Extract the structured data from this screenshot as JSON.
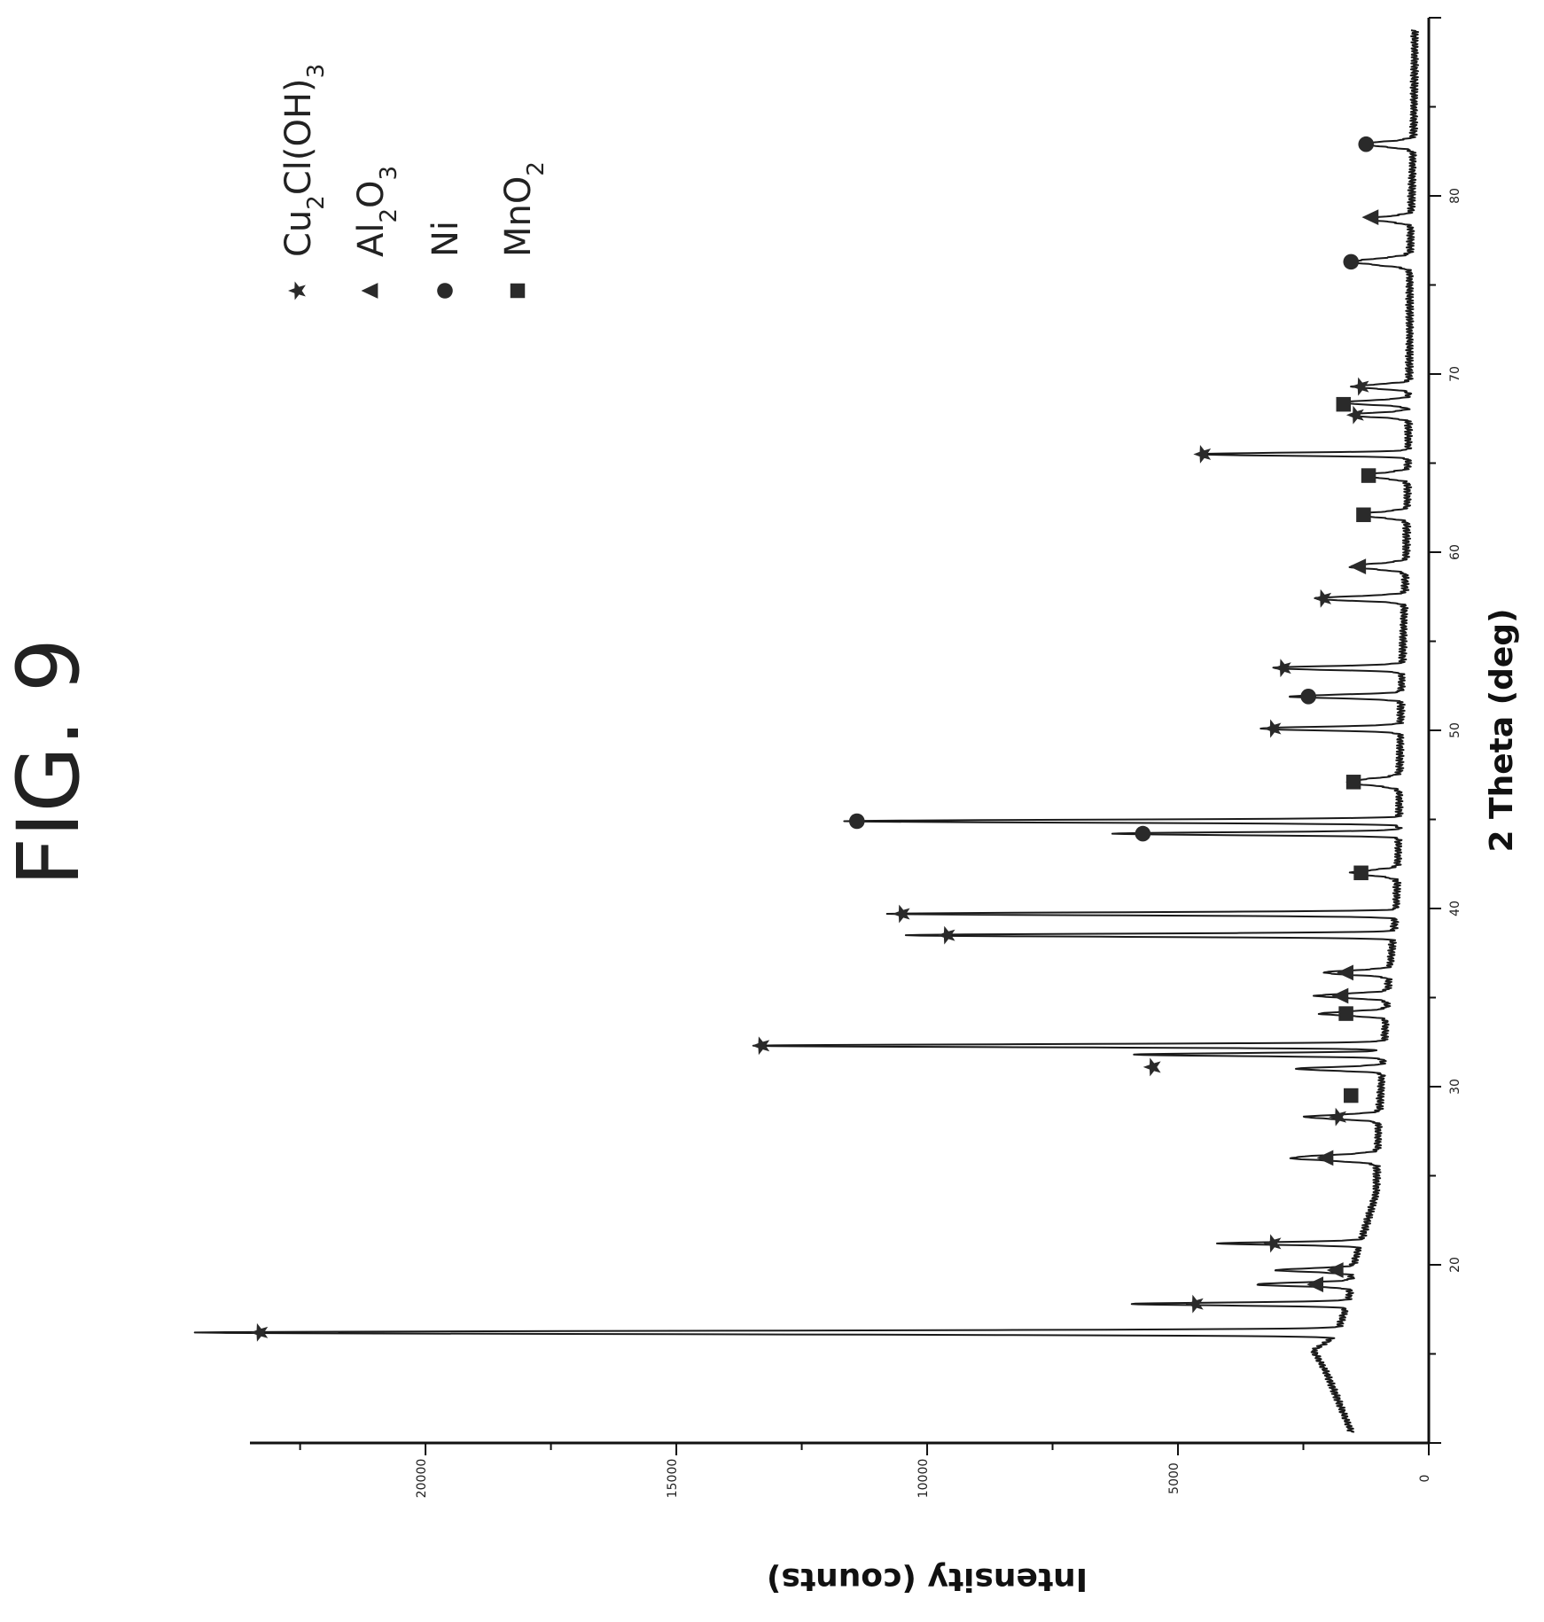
{
  "figure": {
    "label": "FIG. 9"
  },
  "chart_data": {
    "type": "line",
    "xlabel": "2 Theta (deg)",
    "ylabel": "Intensity (counts)",
    "xlim": [
      10,
      90
    ],
    "ylim": [
      0,
      23500
    ],
    "xticks": [
      20,
      30,
      40,
      50,
      60,
      70,
      80
    ],
    "yticks": [
      0,
      5000,
      10000,
      15000,
      20000
    ],
    "grid": false,
    "legend_position": "top-right",
    "legend": [
      {
        "marker": "star",
        "label": "Cu2Cl(OH)3",
        "segments": [
          [
            "Cu",
            ""
          ],
          [
            "2",
            "sub"
          ],
          [
            "Cl(OH)",
            ""
          ],
          [
            "3",
            "sub"
          ]
        ]
      },
      {
        "marker": "triangle",
        "label": "Al2O3",
        "segments": [
          [
            "Al",
            ""
          ],
          [
            "2",
            "sub"
          ],
          [
            "O",
            ""
          ],
          [
            "3",
            "sub"
          ]
        ]
      },
      {
        "marker": "circle",
        "label": "Ni",
        "segments": [
          [
            "Ni",
            ""
          ]
        ]
      },
      {
        "marker": "square",
        "label": "MnO2",
        "segments": [
          [
            "MnO",
            ""
          ],
          [
            "2",
            "sub"
          ]
        ]
      }
    ],
    "baseline": [
      [
        10,
        1450
      ],
      [
        12,
        1750
      ],
      [
        14,
        2050
      ],
      [
        15.2,
        2300
      ],
      [
        16,
        1850
      ],
      [
        18,
        1600
      ],
      [
        20,
        1500
      ],
      [
        24,
        1050
      ],
      [
        28,
        1000
      ],
      [
        32,
        900
      ],
      [
        36,
        800
      ],
      [
        40,
        650
      ],
      [
        44,
        600
      ],
      [
        48,
        580
      ],
      [
        52,
        550
      ],
      [
        56,
        500
      ],
      [
        60,
        450
      ],
      [
        64,
        420
      ],
      [
        68,
        400
      ],
      [
        72,
        380
      ],
      [
        76,
        380
      ],
      [
        80,
        340
      ],
      [
        84,
        300
      ],
      [
        88,
        280
      ],
      [
        90,
        280
      ]
    ],
    "peaks": [
      {
        "x": 16.2,
        "y": 22800,
        "w": 0.09
      },
      {
        "x": 17.8,
        "y": 4300,
        "w": 0.08
      },
      {
        "x": 18.9,
        "y": 1900,
        "w": 0.1
      },
      {
        "x": 19.7,
        "y": 1500,
        "w": 0.1
      },
      {
        "x": 21.2,
        "y": 2800,
        "w": 0.08
      },
      {
        "x": 26.0,
        "y": 1700,
        "w": 0.15
      },
      {
        "x": 28.3,
        "y": 1450,
        "w": 0.12
      },
      {
        "x": 31.0,
        "y": 1700,
        "w": 0.1
      },
      {
        "x": 31.8,
        "y": 5000,
        "w": 0.08
      },
      {
        "x": 32.3,
        "y": 12600,
        "w": 0.08
      },
      {
        "x": 34.1,
        "y": 1300,
        "w": 0.12
      },
      {
        "x": 35.1,
        "y": 1400,
        "w": 0.12
      },
      {
        "x": 36.4,
        "y": 1300,
        "w": 0.12
      },
      {
        "x": 38.5,
        "y": 9700,
        "w": 0.08
      },
      {
        "x": 39.7,
        "y": 10100,
        "w": 0.08
      },
      {
        "x": 42.0,
        "y": 900,
        "w": 0.15
      },
      {
        "x": 44.2,
        "y": 5700,
        "w": 0.08
      },
      {
        "x": 44.9,
        "y": 11000,
        "w": 0.08
      },
      {
        "x": 47.1,
        "y": 1000,
        "w": 0.18
      },
      {
        "x": 50.1,
        "y": 2800,
        "w": 0.1
      },
      {
        "x": 51.9,
        "y": 2200,
        "w": 0.1
      },
      {
        "x": 53.5,
        "y": 2600,
        "w": 0.1
      },
      {
        "x": 57.4,
        "y": 1800,
        "w": 0.12
      },
      {
        "x": 59.2,
        "y": 1100,
        "w": 0.15
      },
      {
        "x": 62.1,
        "y": 1000,
        "w": 0.15
      },
      {
        "x": 64.3,
        "y": 900,
        "w": 0.15
      },
      {
        "x": 65.5,
        "y": 4200,
        "w": 0.08
      },
      {
        "x": 67.7,
        "y": 1200,
        "w": 0.12
      },
      {
        "x": 68.4,
        "y": 1300,
        "w": 0.12
      },
      {
        "x": 69.3,
        "y": 1100,
        "w": 0.12
      },
      {
        "x": 76.3,
        "y": 1100,
        "w": 0.18
      },
      {
        "x": 78.7,
        "y": 800,
        "w": 0.15
      },
      {
        "x": 82.9,
        "y": 950,
        "w": 0.15
      }
    ],
    "markers": [
      {
        "type": "star",
        "x": 16.2,
        "y": 23300
      },
      {
        "type": "star",
        "x": 17.8,
        "y": 4650
      },
      {
        "type": "triangle",
        "x": 18.9,
        "y": 2250
      },
      {
        "type": "triangle",
        "x": 19.7,
        "y": 1850
      },
      {
        "type": "star",
        "x": 21.2,
        "y": 3100
      },
      {
        "type": "triangle",
        "x": 26.0,
        "y": 2050
      },
      {
        "type": "star",
        "x": 28.3,
        "y": 1800
      },
      {
        "type": "square",
        "x": 29.5,
        "y": 1550
      },
      {
        "type": "star",
        "x": 31.1,
        "y": 5500
      },
      {
        "type": "star",
        "x": 32.3,
        "y": 13300
      },
      {
        "type": "square",
        "x": 34.1,
        "y": 1650
      },
      {
        "type": "triangle",
        "x": 35.1,
        "y": 1750
      },
      {
        "type": "triangle",
        "x": 36.4,
        "y": 1650
      },
      {
        "type": "star",
        "x": 38.5,
        "y": 9600
      },
      {
        "type": "star",
        "x": 39.7,
        "y": 10500
      },
      {
        "type": "square",
        "x": 42.0,
        "y": 1350
      },
      {
        "type": "circle",
        "x": 44.2,
        "y": 5700
      },
      {
        "type": "circle",
        "x": 44.9,
        "y": 11400
      },
      {
        "type": "square",
        "x": 47.1,
        "y": 1500
      },
      {
        "type": "star",
        "x": 50.1,
        "y": 3100
      },
      {
        "type": "circle",
        "x": 51.9,
        "y": 2400
      },
      {
        "type": "star",
        "x": 53.5,
        "y": 2900
      },
      {
        "type": "star",
        "x": 57.4,
        "y": 2100
      },
      {
        "type": "triangle",
        "x": 59.2,
        "y": 1400
      },
      {
        "type": "square",
        "x": 62.1,
        "y": 1300
      },
      {
        "type": "square",
        "x": 64.3,
        "y": 1200
      },
      {
        "type": "star",
        "x": 65.5,
        "y": 4500
      },
      {
        "type": "star",
        "x": 67.7,
        "y": 1450
      },
      {
        "type": "square",
        "x": 68.3,
        "y": 1700
      },
      {
        "type": "star",
        "x": 69.3,
        "y": 1350
      },
      {
        "type": "circle",
        "x": 76.3,
        "y": 1550
      },
      {
        "type": "triangle",
        "x": 78.8,
        "y": 1150
      },
      {
        "type": "circle",
        "x": 82.9,
        "y": 1250
      }
    ]
  }
}
